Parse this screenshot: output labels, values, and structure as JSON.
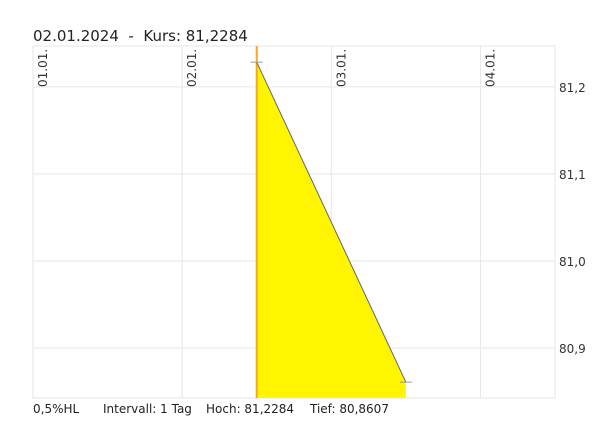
{
  "header": {
    "title": "02.01.2024  -  Kurs: 81,2284"
  },
  "footer": {
    "mode": "0,5%HL",
    "interval": "Intervall: 1 Tag",
    "high": "Hoch: 81,2284",
    "low": "Tief: 80,8607"
  },
  "colors": {
    "fill": "#fff500",
    "marker": "#f5a623",
    "line": "#666666",
    "grid": "#e6e6e6"
  },
  "chart_data": {
    "type": "area",
    "x_ticks": [
      "01.01.",
      "02.01.",
      "03.01.",
      "04.01."
    ],
    "y_ticks": [
      "81,2",
      "81,1",
      "81,0",
      "80,9"
    ],
    "y_tick_values": [
      81.2,
      81.1,
      81.0,
      80.9
    ],
    "xlim": [
      "2024-01-01T00:00",
      "2024-01-04T12:00"
    ],
    "ylim": [
      80.8425,
      81.247
    ],
    "points": [
      {
        "x": "2024-01-02T12:00",
        "y": 81.2284
      },
      {
        "x": "2024-01-03T12:00",
        "y": 80.8607
      }
    ],
    "grid": true
  }
}
